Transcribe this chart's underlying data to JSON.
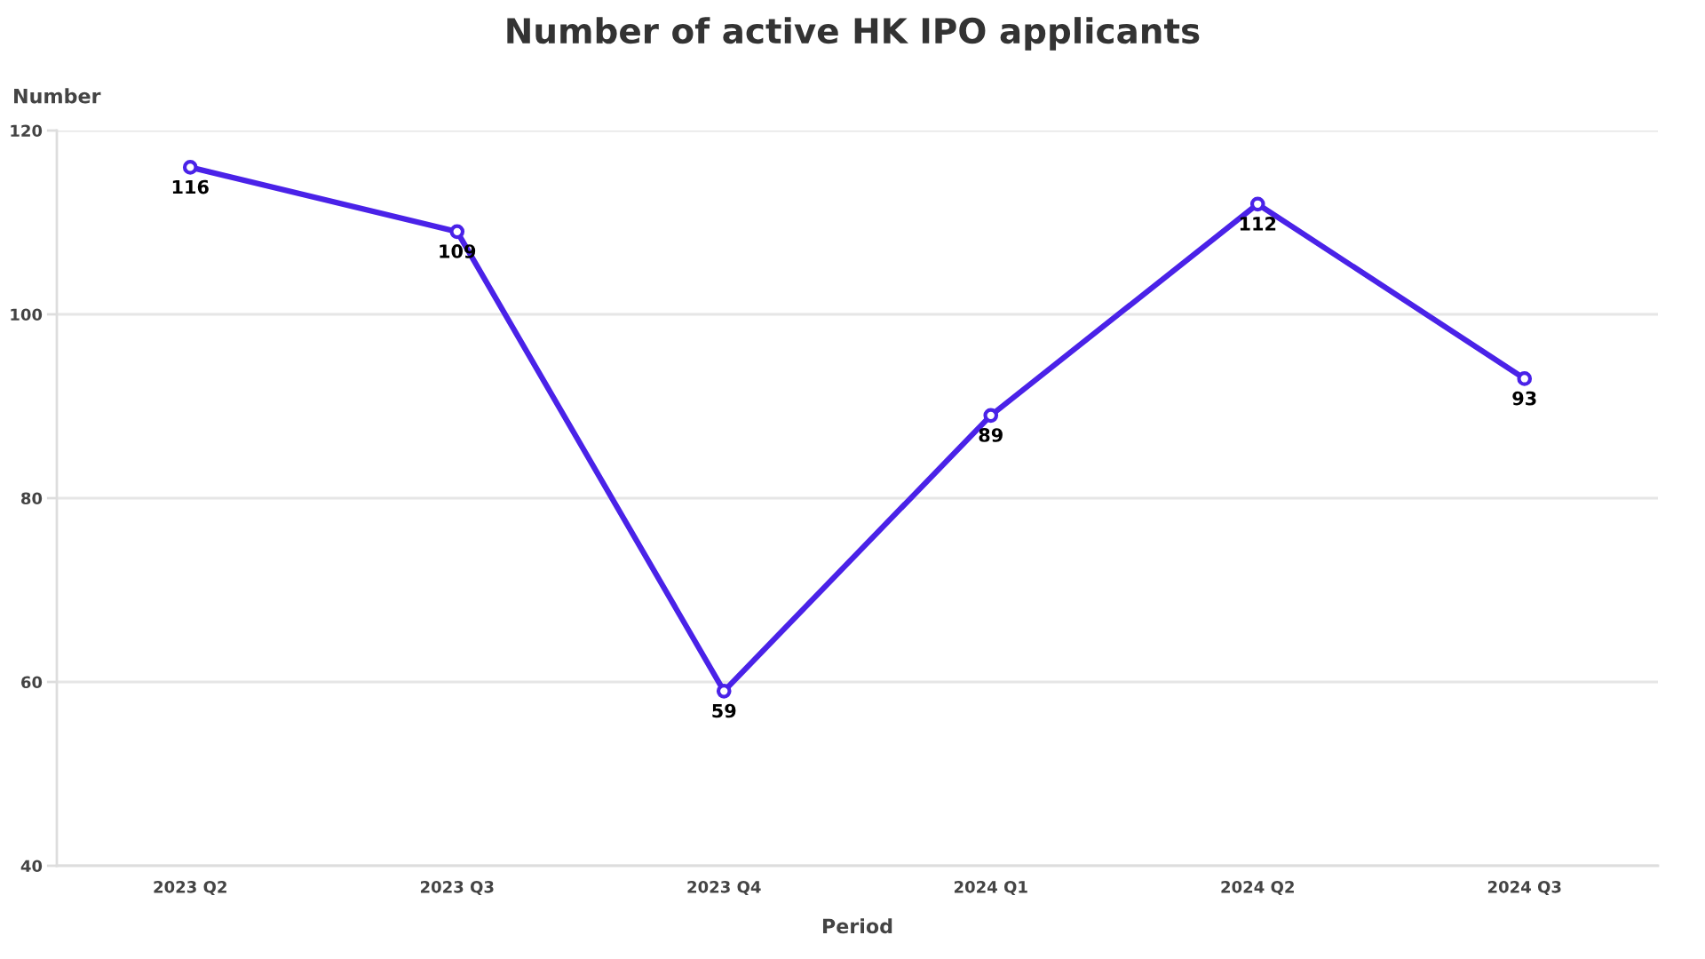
{
  "chart_data": {
    "type": "line",
    "title": "Number of active HK IPO applicants",
    "xlabel": "Period",
    "ylabel": "Number",
    "categories": [
      "2023 Q2",
      "2023 Q3",
      "2023 Q4",
      "2024 Q1",
      "2024 Q2",
      "2024 Q3"
    ],
    "series": [
      {
        "color": "#4a22e8",
        "values": [
          116,
          109,
          59,
          89,
          112,
          93
        ]
      }
    ],
    "ylim": [
      40,
      120
    ],
    "yticks": [
      40,
      60,
      80,
      100,
      120
    ],
    "grid": "y",
    "marker": "circle",
    "line_style": "solid",
    "data_labels": true,
    "legend": false
  }
}
